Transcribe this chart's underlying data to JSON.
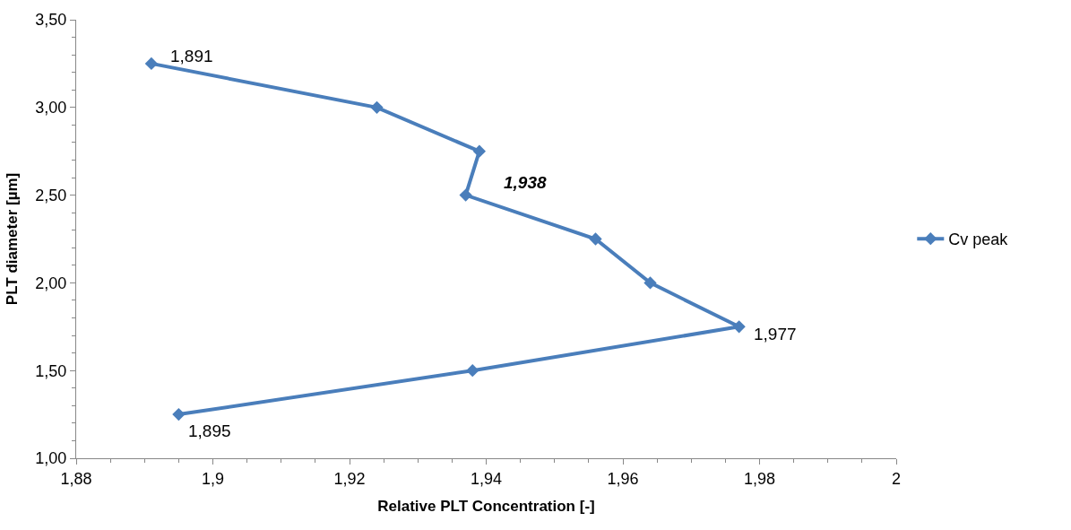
{
  "chart_data": {
    "type": "line",
    "xlabel": "Relative PLT Concentration [-]",
    "ylabel": "PLT diameter [µm]",
    "series": [
      {
        "name": "Cv peak",
        "color": "#4a7ebb",
        "x": [
          1.891,
          1.924,
          1.939,
          1.937,
          1.956,
          1.964,
          1.977,
          1.938,
          1.895
        ],
        "values": [
          3.25,
          3.0,
          2.75,
          2.5,
          2.25,
          2.0,
          1.75,
          1.5,
          1.25
        ]
      }
    ],
    "xlim": [
      1.88,
      2
    ],
    "ylim": [
      1,
      3.5
    ],
    "xticks": [
      {
        "value": 1.88,
        "label": "1,88"
      },
      {
        "value": 1.9,
        "label": "1,9"
      },
      {
        "value": 1.92,
        "label": "1,92"
      },
      {
        "value": 1.94,
        "label": "1,94"
      },
      {
        "value": 1.96,
        "label": "1,96"
      },
      {
        "value": 1.98,
        "label": "1,98"
      },
      2
    ],
    "yticks": [
      {
        "value": 1,
        "label": "1,00"
      },
      {
        "value": 1.5,
        "label": "1,50"
      },
      {
        "value": 2,
        "label": "2,00"
      },
      {
        "value": 2.5,
        "label": "2,50"
      },
      {
        "value": 3,
        "label": "3,00"
      },
      {
        "value": 3.5,
        "label": "3,50"
      }
    ],
    "annotations": [
      {
        "text": "1,891",
        "x": 1.891,
        "y": 3.25
      },
      "**1,938**",
      {
        "text": "1,977",
        "x": 1.977,
        "y": 1.75
      },
      {
        "text": "1,895",
        "x": 1.895,
        "y": 1.25
      }
    ],
    "legend": "right",
    "marker": "diamond",
    "line_style": "solid"
  }
}
